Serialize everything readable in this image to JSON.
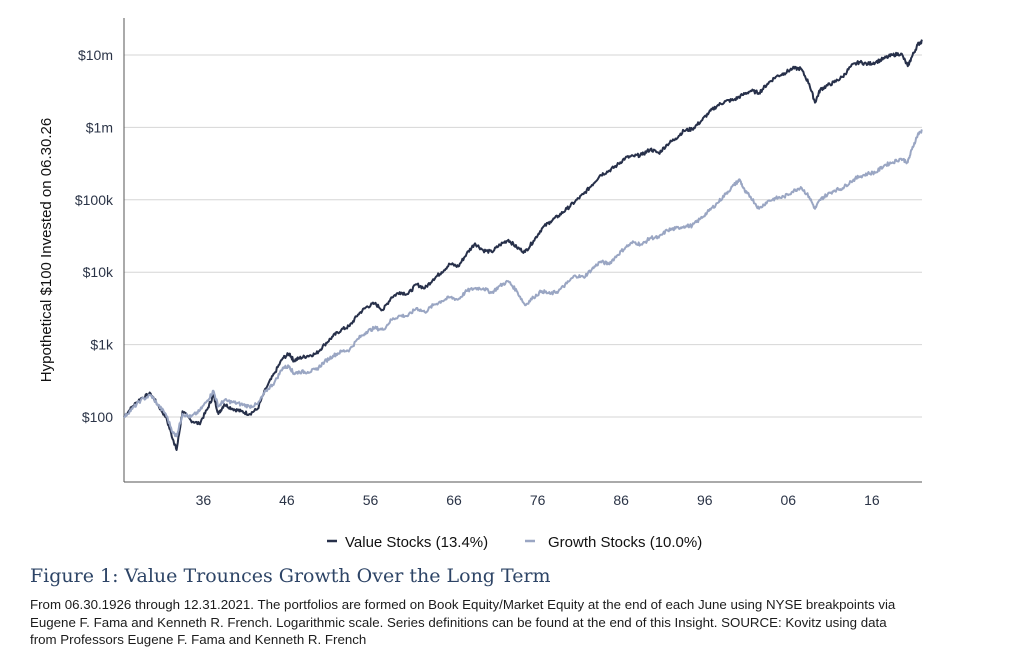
{
  "chart_data": {
    "type": "line",
    "ylabel": "Hypothetical $100 Invested on 06.30.26",
    "yscale": "log",
    "ylim": [
      30,
      20000000
    ],
    "xlim": [
      1926.5,
      2022
    ],
    "yticks": [
      {
        "value": 100,
        "label": "$100"
      },
      {
        "value": 1000,
        "label": "$1k"
      },
      {
        "value": 10000,
        "label": "$10k"
      },
      {
        "value": 100000,
        "label": "$100k"
      },
      {
        "value": 1000000,
        "label": "$1m"
      },
      {
        "value": 10000000,
        "label": "$10m"
      }
    ],
    "xticks": [
      {
        "value": 1936,
        "label": "36"
      },
      {
        "value": 1946,
        "label": "46"
      },
      {
        "value": 1956,
        "label": "56"
      },
      {
        "value": 1966,
        "label": "66"
      },
      {
        "value": 1976,
        "label": "76"
      },
      {
        "value": 1986,
        "label": "86"
      },
      {
        "value": 1996,
        "label": "96"
      },
      {
        "value": 2006,
        "label": "06"
      },
      {
        "value": 2016,
        "label": "16"
      }
    ],
    "grid": "horizontal",
    "legend_position": "bottom",
    "series": [
      {
        "name": "Value Stocks (13.4%)",
        "color": "#27304a",
        "points": [
          [
            1926.5,
            100
          ],
          [
            1927.5,
            140
          ],
          [
            1928.5,
            180
          ],
          [
            1929.7,
            210
          ],
          [
            1930.5,
            150
          ],
          [
            1931.5,
            100
          ],
          [
            1932.4,
            48
          ],
          [
            1932.8,
            35
          ],
          [
            1933.5,
            120
          ],
          [
            1934.5,
            90
          ],
          [
            1935.5,
            80
          ],
          [
            1936.5,
            130
          ],
          [
            1937.2,
            200
          ],
          [
            1937.8,
            110
          ],
          [
            1938.5,
            150
          ],
          [
            1939.5,
            130
          ],
          [
            1940.5,
            120
          ],
          [
            1941.5,
            110
          ],
          [
            1942.5,
            130
          ],
          [
            1943.5,
            250
          ],
          [
            1944.5,
            400
          ],
          [
            1945.5,
            650
          ],
          [
            1946.3,
            750
          ],
          [
            1946.8,
            600
          ],
          [
            1947.5,
            650
          ],
          [
            1948.5,
            700
          ],
          [
            1949.5,
            750
          ],
          [
            1950.5,
            1000
          ],
          [
            1951.5,
            1300
          ],
          [
            1952.5,
            1600
          ],
          [
            1953.5,
            1800
          ],
          [
            1954.5,
            2600
          ],
          [
            1955.5,
            3300
          ],
          [
            1956.5,
            3700
          ],
          [
            1957.5,
            3000
          ],
          [
            1958.5,
            4500
          ],
          [
            1959.5,
            5300
          ],
          [
            1960.5,
            5000
          ],
          [
            1961.5,
            6800
          ],
          [
            1962.5,
            6000
          ],
          [
            1963.5,
            8000
          ],
          [
            1964.5,
            10000
          ],
          [
            1965.5,
            13000
          ],
          [
            1966.5,
            12000
          ],
          [
            1967.5,
            18000
          ],
          [
            1968.5,
            25000
          ],
          [
            1969.5,
            20000
          ],
          [
            1970.5,
            19000
          ],
          [
            1971.5,
            24000
          ],
          [
            1972.5,
            28000
          ],
          [
            1973.5,
            22000
          ],
          [
            1974.5,
            19000
          ],
          [
            1975.5,
            27000
          ],
          [
            1976.5,
            40000
          ],
          [
            1977.5,
            50000
          ],
          [
            1978.5,
            60000
          ],
          [
            1979.5,
            75000
          ],
          [
            1980.5,
            95000
          ],
          [
            1981.5,
            120000
          ],
          [
            1982.5,
            160000
          ],
          [
            1983.5,
            220000
          ],
          [
            1984.5,
            250000
          ],
          [
            1985.5,
            300000
          ],
          [
            1986.5,
            380000
          ],
          [
            1987.5,
            400000
          ],
          [
            1988.5,
            420000
          ],
          [
            1989.5,
            500000
          ],
          [
            1990.5,
            440000
          ],
          [
            1991.5,
            580000
          ],
          [
            1992.5,
            700000
          ],
          [
            1993.5,
            900000
          ],
          [
            1994.5,
            950000
          ],
          [
            1995.5,
            1200000
          ],
          [
            1996.5,
            1600000
          ],
          [
            1997.5,
            2000000
          ],
          [
            1998.5,
            2300000
          ],
          [
            1999.5,
            2400000
          ],
          [
            2000.5,
            2800000
          ],
          [
            2001.5,
            3200000
          ],
          [
            2002.5,
            3000000
          ],
          [
            2003.5,
            4000000
          ],
          [
            2004.5,
            5000000
          ],
          [
            2005.5,
            5600000
          ],
          [
            2006.5,
            6500000
          ],
          [
            2007.5,
            6500000
          ],
          [
            2008.5,
            4000000
          ],
          [
            2009.2,
            2200000
          ],
          [
            2009.8,
            3300000
          ],
          [
            2010.5,
            3700000
          ],
          [
            2011.5,
            4200000
          ],
          [
            2012.5,
            5000000
          ],
          [
            2013.5,
            7000000
          ],
          [
            2014.5,
            8000000
          ],
          [
            2015.5,
            7500000
          ],
          [
            2016.5,
            8000000
          ],
          [
            2017.5,
            9000000
          ],
          [
            2018.5,
            10000000
          ],
          [
            2019.5,
            10500000
          ],
          [
            2020.3,
            7000000
          ],
          [
            2020.8,
            9500000
          ],
          [
            2021.5,
            14000000
          ],
          [
            2022.0,
            15500000
          ]
        ]
      },
      {
        "name": "Growth Stocks (10.0%)",
        "color": "#9aa6c3",
        "points": [
          [
            1926.5,
            100
          ],
          [
            1927.5,
            130
          ],
          [
            1928.5,
            170
          ],
          [
            1929.7,
            200
          ],
          [
            1930.5,
            150
          ],
          [
            1931.5,
            110
          ],
          [
            1932.4,
            60
          ],
          [
            1932.8,
            55
          ],
          [
            1933.5,
            110
          ],
          [
            1934.5,
            100
          ],
          [
            1935.5,
            120
          ],
          [
            1936.5,
            170
          ],
          [
            1937.2,
            230
          ],
          [
            1937.8,
            140
          ],
          [
            1938.5,
            170
          ],
          [
            1939.5,
            160
          ],
          [
            1940.5,
            150
          ],
          [
            1941.5,
            140
          ],
          [
            1942.5,
            150
          ],
          [
            1943.5,
            230
          ],
          [
            1944.5,
            300
          ],
          [
            1945.5,
            480
          ],
          [
            1946.3,
            500
          ],
          [
            1946.8,
            400
          ],
          [
            1947.5,
            420
          ],
          [
            1948.5,
            420
          ],
          [
            1949.5,
            450
          ],
          [
            1950.5,
            580
          ],
          [
            1951.5,
            700
          ],
          [
            1952.5,
            800
          ],
          [
            1953.5,
            850
          ],
          [
            1954.5,
            1200
          ],
          [
            1955.5,
            1500
          ],
          [
            1956.5,
            1700
          ],
          [
            1957.5,
            1600
          ],
          [
            1958.5,
            2200
          ],
          [
            1959.5,
            2500
          ],
          [
            1960.5,
            2500
          ],
          [
            1961.5,
            3200
          ],
          [
            1962.5,
            2800
          ],
          [
            1963.5,
            3500
          ],
          [
            1964.5,
            4000
          ],
          [
            1965.5,
            4500
          ],
          [
            1966.5,
            4200
          ],
          [
            1967.5,
            5500
          ],
          [
            1968.5,
            6000
          ],
          [
            1969.5,
            6000
          ],
          [
            1970.5,
            5200
          ],
          [
            1971.5,
            6500
          ],
          [
            1972.5,
            7500
          ],
          [
            1973.5,
            5500
          ],
          [
            1974.5,
            3500
          ],
          [
            1975.5,
            4500
          ],
          [
            1976.5,
            5500
          ],
          [
            1977.5,
            5000
          ],
          [
            1978.5,
            5500
          ],
          [
            1979.5,
            7000
          ],
          [
            1980.5,
            9000
          ],
          [
            1981.5,
            8500
          ],
          [
            1982.5,
            11000
          ],
          [
            1983.5,
            14000
          ],
          [
            1984.5,
            13000
          ],
          [
            1985.5,
            17000
          ],
          [
            1986.5,
            22000
          ],
          [
            1987.5,
            26000
          ],
          [
            1988.5,
            24000
          ],
          [
            1989.5,
            30000
          ],
          [
            1990.5,
            30000
          ],
          [
            1991.5,
            38000
          ],
          [
            1992.5,
            40000
          ],
          [
            1993.5,
            43000
          ],
          [
            1994.5,
            44000
          ],
          [
            1995.5,
            55000
          ],
          [
            1996.5,
            70000
          ],
          [
            1997.5,
            90000
          ],
          [
            1998.5,
            120000
          ],
          [
            1999.5,
            160000
          ],
          [
            2000.2,
            190000
          ],
          [
            2000.8,
            130000
          ],
          [
            2001.5,
            110000
          ],
          [
            2002.5,
            75000
          ],
          [
            2003.5,
            95000
          ],
          [
            2004.5,
            105000
          ],
          [
            2005.5,
            110000
          ],
          [
            2006.5,
            130000
          ],
          [
            2007.5,
            150000
          ],
          [
            2008.5,
            110000
          ],
          [
            2009.2,
            75000
          ],
          [
            2009.8,
            100000
          ],
          [
            2010.5,
            115000
          ],
          [
            2011.5,
            135000
          ],
          [
            2012.5,
            145000
          ],
          [
            2013.5,
            180000
          ],
          [
            2014.5,
            210000
          ],
          [
            2015.5,
            230000
          ],
          [
            2016.5,
            240000
          ],
          [
            2017.5,
            300000
          ],
          [
            2018.5,
            330000
          ],
          [
            2019.5,
            370000
          ],
          [
            2020.3,
            330000
          ],
          [
            2020.8,
            500000
          ],
          [
            2021.5,
            800000
          ],
          [
            2022.0,
            900000
          ]
        ]
      }
    ]
  },
  "figure": {
    "title": "Figure 1: Value Trounces Growth Over the Long Term",
    "caption": "From 06.30.1926 through 12.31.2021. The portfolios are formed on Book Equity/Market Equity at the end of each June using NYSE breakpoints via Eugene F. Fama and Kenneth R. French. Logarithmic scale. Series definitions can be found at the end of this Insight. SOURCE: Kovitz using data from Professors Eugene F. Fama and Kenneth R. French"
  }
}
